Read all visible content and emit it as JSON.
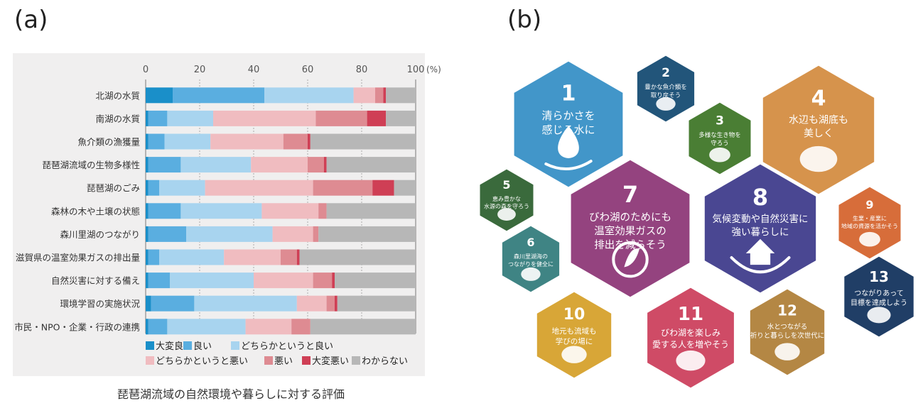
{
  "panels": {
    "a_label": "(a)",
    "b_label": "(b)"
  },
  "chart_data": {
    "type": "bar",
    "orientation": "horizontal",
    "stacked": true,
    "caption": "琵琶湖流域の自然環境や暮らしに対する評価",
    "unit": "(%)",
    "xlim": [
      0,
      100
    ],
    "ticks": [
      0,
      20,
      40,
      60,
      80,
      100
    ],
    "grid": true,
    "legend_position": "bottom",
    "categories": [
      "北湖の水質",
      "南湖の水質",
      "魚介類の漁獲量",
      "琵琶湖流域の生物多様性",
      "琵琶湖のごみ",
      "森林の木や土壌の状態",
      "森川里湖のつながり",
      "滋賀県の温室効果ガスの排出量",
      "自然災害に対する備え",
      "環境学習の実施状況",
      "市民・NPO・企業・行政の連携"
    ],
    "series": [
      {
        "name": "大変良い",
        "color": "#1a8fc9",
        "values": [
          10,
          1,
          1,
          1,
          1,
          1,
          1,
          1,
          1,
          2,
          1
        ]
      },
      {
        "name": "良い",
        "color": "#5aaee0",
        "values": [
          34,
          7,
          6,
          12,
          4,
          12,
          14,
          4,
          8,
          16,
          7
        ]
      },
      {
        "name": "どちらかというと良い",
        "color": "#a8d4ef",
        "values": [
          33,
          17,
          17,
          26,
          17,
          30,
          32,
          24,
          31,
          38,
          29
        ]
      },
      {
        "name": "どちらかというと悪い",
        "color": "#f0bcc0",
        "values": [
          8,
          38,
          27,
          21,
          40,
          21,
          15,
          21,
          22,
          11,
          17
        ]
      },
      {
        "name": "悪い",
        "color": "#de8b92",
        "values": [
          3,
          19,
          9,
          6,
          22,
          3,
          2,
          6,
          7,
          3,
          7
        ]
      },
      {
        "name": "大変悪い",
        "color": "#cf3f55",
        "values": [
          1,
          7,
          1,
          1,
          8,
          0,
          0,
          1,
          1,
          1,
          0
        ]
      },
      {
        "name": "わからない",
        "color": "#b7b7b7",
        "values": [
          11,
          11,
          39,
          33,
          8,
          33,
          36,
          43,
          30,
          29,
          39
        ]
      }
    ]
  },
  "sdg_hexes": [
    {
      "num": "1",
      "text": [
        "清らかさを",
        "感じる水に"
      ],
      "color": "#4296c9"
    },
    {
      "num": "2",
      "text": [
        "豊かな魚介類を",
        "取り戻そう"
      ],
      "color": "#22557a"
    },
    {
      "num": "3",
      "text": [
        "多様な生き物を",
        "守ろう"
      ],
      "color": "#4a7e34"
    },
    {
      "num": "4",
      "text": [
        "水辺も湖底も",
        "美しく"
      ],
      "color": "#d6934c"
    },
    {
      "num": "5",
      "text": [
        "恵み豊かな",
        "水源の森を守ろう"
      ],
      "color": "#3a6a3c"
    },
    {
      "num": "6",
      "text": [
        "森川里湖海の",
        "つながりを健全に"
      ],
      "color": "#3f8484"
    },
    {
      "num": "7",
      "text": [
        "びわ湖のためにも",
        "温室効果ガスの",
        "排出を減らそう"
      ],
      "color": "#94437f"
    },
    {
      "num": "8",
      "text": [
        "気候変動や自然災害に",
        "強い暮らしに"
      ],
      "color": "#4a4792"
    },
    {
      "num": "9",
      "text": [
        "生業・産業に",
        "地域の資源を活かそう"
      ],
      "color": "#d76d3a"
    },
    {
      "num": "10",
      "text": [
        "地元も流域も",
        "学びの場に"
      ],
      "color": "#d8a637"
    },
    {
      "num": "11",
      "text": [
        "びわ湖を楽しみ",
        "愛する人を増やそう"
      ],
      "color": "#cf4b66"
    },
    {
      "num": "12",
      "text": [
        "水とつながる",
        "祈りと暮らしを次世代に"
      ],
      "color": "#b48744"
    },
    {
      "num": "13",
      "text": [
        "つながりあって",
        "目標を達成しよう"
      ],
      "color": "#203e66"
    }
  ]
}
